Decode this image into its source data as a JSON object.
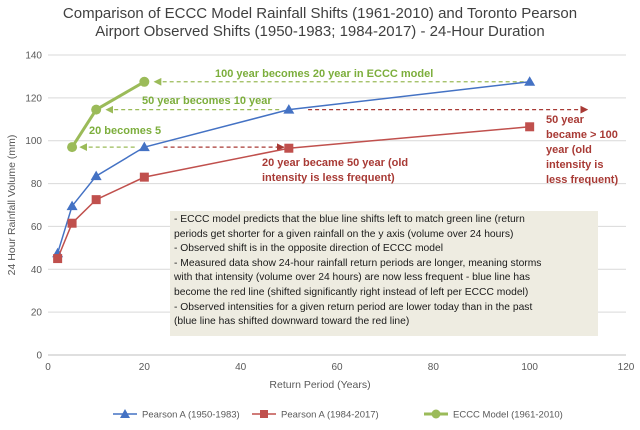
{
  "chart_data": {
    "type": "line",
    "title": [
      "Comparison of ECCC Model Rainfall Shifts (1961-2010) and Toronto Pearson",
      "Airport Observed Shifts (1950-1983; 1984-2017) - 24-Hour Duration"
    ],
    "xlabel": "Return Period (Years)",
    "ylabel": "24 Hour Rainfall Volume (mm)",
    "xlim": [
      0,
      120
    ],
    "ylim": [
      0,
      140
    ],
    "xticks": [
      0,
      20,
      40,
      60,
      80,
      100,
      120
    ],
    "yticks": [
      0,
      20,
      40,
      60,
      80,
      100,
      120,
      140
    ],
    "grid": "horizontal",
    "legend_position": "bottom",
    "series": [
      {
        "name": "Pearson A (1950-1983)",
        "color": "#4472c4",
        "marker": "triangle",
        "x": [
          2,
          5,
          10,
          20,
          50,
          100
        ],
        "y": [
          47.5,
          69.5,
          83.5,
          97,
          114.5,
          127.5
        ]
      },
      {
        "name": "Pearson A (1984-2017)",
        "color": "#c0504d",
        "marker": "square",
        "x": [
          2,
          5,
          10,
          20,
          50,
          100
        ],
        "y": [
          45,
          61.5,
          72.5,
          83,
          96.5,
          106.5
        ]
      },
      {
        "name": "ECCC Model (1961-2010)",
        "color": "#9bbb59",
        "marker": "circle",
        "x": [
          5,
          10,
          20
        ],
        "y": [
          97,
          114.5,
          127.5
        ]
      }
    ],
    "annotations": [
      {
        "text": "100 year becomes 20 year in ECCC model",
        "color": "green"
      },
      {
        "text": "50 year becomes 10 year",
        "color": "green"
      },
      {
        "text": "20 becomes 5",
        "color": "green"
      },
      {
        "text": [
          "20 year became 50 year (old",
          "intensity is less frequent)"
        ],
        "color": "red"
      },
      {
        "text": [
          "50 year",
          "became > 100",
          "year (old",
          "intensity is",
          "less frequent)"
        ],
        "color": "red"
      }
    ],
    "note_lines": [
      "- ECCC model predicts that the blue line shifts left to match green line (return",
      "periods get shorter for a given rainfall on the y axis (volume over 24 hours)",
      "- Observed shift is in the opposite direction of ECCC model",
      "- Measured data show 24-hour rainfall return periods are longer, meaning storms",
      "with that intensity (volume over 24 hours) are now less frequent - blue line has",
      "become the red line (shifted significantly right instead of left per ECCC model)",
      "- Observed intensities for a given return period are lower today than in the past",
      "(blue line has shifted downward toward the red line)"
    ]
  }
}
